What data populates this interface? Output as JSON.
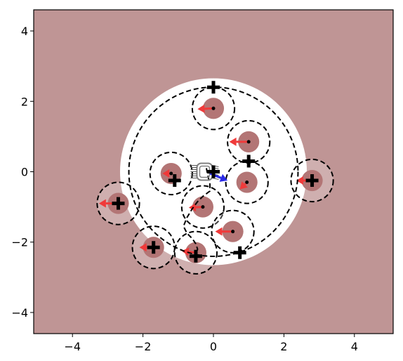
{
  "chart_data": {
    "type": "scatter",
    "title": "",
    "xlabel": "",
    "ylabel": "",
    "xlim": [
      -5.1,
      5.1
    ],
    "ylim": [
      -4.6,
      4.6
    ],
    "x_ticks": [
      -4,
      -2,
      0,
      2,
      4
    ],
    "y_ticks": [
      -4,
      -2,
      0,
      2,
      4
    ],
    "x_tick_labels": [
      "−4",
      "−2",
      "0",
      "2",
      "4"
    ],
    "y_tick_labels": [
      "−4",
      "−2",
      "0",
      "2",
      "4"
    ],
    "grid": false,
    "colors": {
      "background": "#bf9595",
      "free_space": "#ffffff",
      "obstacle": "#b37575",
      "arrow_red": "#f03a3a",
      "arrow_blue": "#2a2ae6",
      "robot": "#808080",
      "line": "#000000"
    },
    "free_region": {
      "cx": 0.0,
      "cy": 0.0,
      "r": 2.65
    },
    "boundary_circle": {
      "cx": 0.0,
      "cy": 0.0,
      "r": 2.4
    },
    "obstacles": [
      {
        "x": 0.0,
        "y": 1.8,
        "vx": -0.45,
        "vy": -0.02,
        "r": 0.3,
        "ring_r": 0.6
      },
      {
        "x": 1.0,
        "y": 0.85,
        "vx": -0.55,
        "vy": 0.0,
        "r": 0.3,
        "ring_r": 0.6
      },
      {
        "x": -1.2,
        "y": -0.05,
        "vx": -0.25,
        "vy": 0.0,
        "r": 0.3,
        "ring_r": 0.6
      },
      {
        "x": 0.95,
        "y": -0.3,
        "vx": -0.2,
        "vy": -0.2,
        "r": 0.3,
        "ring_r": 0.6
      },
      {
        "x": 2.8,
        "y": -0.25,
        "vx": -0.45,
        "vy": 0.0,
        "r": 0.3,
        "ring_r": 0.6
      },
      {
        "x": -0.3,
        "y": -1.0,
        "vx": -0.4,
        "vy": -0.02,
        "r": 0.3,
        "ring_r": 0.6
      },
      {
        "x": 0.55,
        "y": -1.7,
        "vx": -0.5,
        "vy": 0.0,
        "r": 0.3,
        "ring_r": 0.6
      },
      {
        "x": -2.7,
        "y": -0.9,
        "vx": -0.55,
        "vy": 0.0,
        "r": 0.3,
        "ring_r": 0.6
      },
      {
        "x": -1.7,
        "y": -2.15,
        "vx": -0.4,
        "vy": 0.0,
        "r": 0.3,
        "ring_r": 0.6
      },
      {
        "x": -0.5,
        "y": -2.3,
        "vx": -0.4,
        "vy": 0.05,
        "r": 0.3,
        "ring_r": 0.6
      }
    ],
    "goals": [
      {
        "x": 0.0,
        "y": 2.4
      },
      {
        "x": 1.0,
        "y": 0.3
      },
      {
        "x": 0.0,
        "y": 0.0
      },
      {
        "x": -1.1,
        "y": -0.25
      },
      {
        "x": 2.8,
        "y": -0.25
      },
      {
        "x": -2.7,
        "y": -0.9
      },
      {
        "x": -1.7,
        "y": -2.15
      },
      {
        "x": -0.5,
        "y": -2.4
      },
      {
        "x": 0.75,
        "y": -2.3
      }
    ],
    "robot": {
      "x": -0.25,
      "y": 0.0,
      "vx": 0.5,
      "vy": -0.2
    },
    "path": [
      [
        -0.2,
        0.1
      ],
      [
        -0.15,
        -0.15
      ],
      [
        -0.1,
        -0.35
      ],
      [
        -0.1,
        -0.55
      ],
      [
        -0.3,
        -0.7
      ],
      [
        -0.45,
        -0.85
      ],
      [
        -0.6,
        -1.05
      ],
      [
        -0.75,
        -1.3
      ],
      [
        -0.85,
        -1.55
      ],
      [
        -0.75,
        -1.75
      ],
      [
        -0.6,
        -1.9
      ],
      [
        -0.5,
        -2.05
      ],
      [
        -0.45,
        -2.2
      ],
      [
        -0.5,
        -2.35
      ]
    ]
  }
}
